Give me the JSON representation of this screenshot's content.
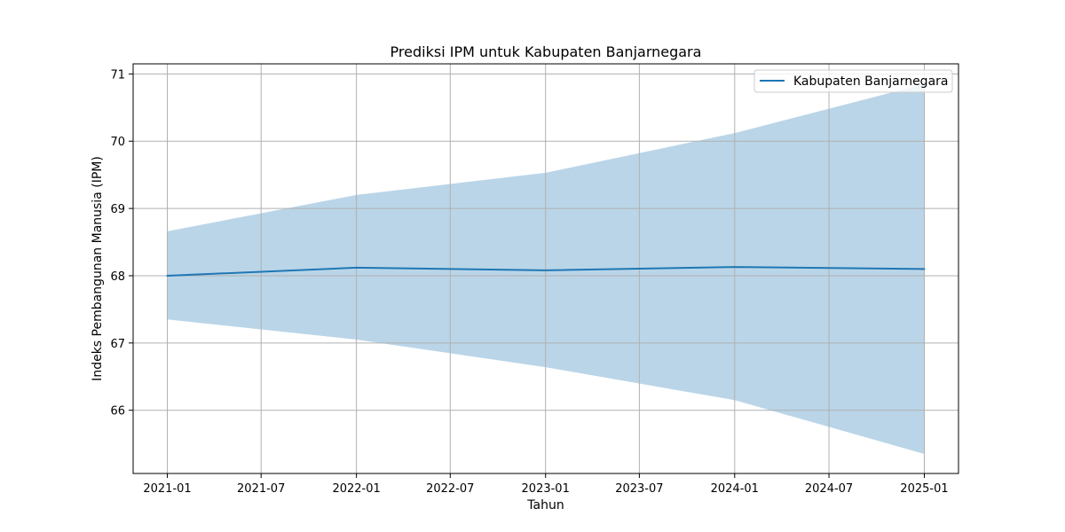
{
  "chart_data": {
    "type": "line",
    "title": "Prediksi IPM untuk Kabupaten Banjarnegara",
    "xlabel": "Tahun",
    "ylabel": "Indeks Pembangunan Manusia (IPM)",
    "x": [
      "2021-01-01",
      "2022-01-01",
      "2023-01-01",
      "2024-01-01",
      "2025-01-01"
    ],
    "series": [
      {
        "name": "Kabupaten Banjarnegara",
        "color": "#1f77b4",
        "values": [
          68.0,
          68.12,
          68.08,
          68.13,
          68.1
        ],
        "lower": [
          67.35,
          67.05,
          66.64,
          66.15,
          65.35
        ],
        "upper": [
          68.66,
          69.2,
          69.53,
          70.12,
          70.85
        ]
      }
    ],
    "band_color": "#bad5e8",
    "x_ticks": [
      {
        "date": "2021-01-01",
        "label": "2021-01"
      },
      {
        "date": "2021-07-01",
        "label": "2021-07"
      },
      {
        "date": "2022-01-01",
        "label": "2022-01"
      },
      {
        "date": "2022-07-01",
        "label": "2022-07"
      },
      {
        "date": "2023-01-01",
        "label": "2023-01"
      },
      {
        "date": "2023-07-01",
        "label": "2023-07"
      },
      {
        "date": "2024-01-01",
        "label": "2024-01"
      },
      {
        "date": "2024-07-01",
        "label": "2024-07"
      },
      {
        "date": "2025-01-01",
        "label": "2025-01"
      }
    ],
    "y_ticks": [
      66,
      67,
      68,
      69,
      70,
      71
    ],
    "xlim": [
      "2020-10-27",
      "2025-03-08"
    ],
    "ylim": [
      65.06,
      71.15
    ],
    "grid": true,
    "legend_position": "top-right"
  }
}
